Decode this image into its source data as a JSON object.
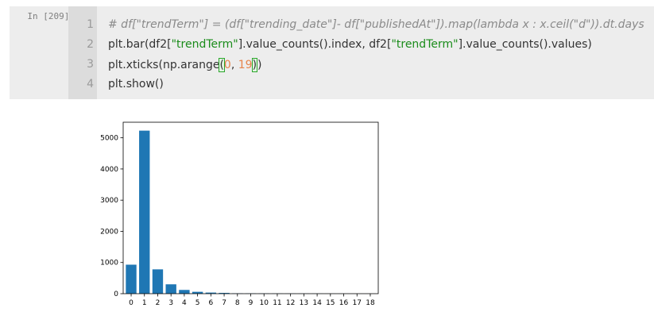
{
  "cell": {
    "prompt": "In [209]:",
    "line_numbers": [
      "1",
      "2",
      "3",
      "4"
    ],
    "lines": [
      [
        {
          "cls": "cm",
          "text": "# df[\"trendTerm\"] = (df[\"trending_date\"]- df[\"publishedAt\"]).map(lambda x : x.ceil(\"d\")).dt.days"
        }
      ],
      [
        {
          "cls": "",
          "text": "plt.bar(df2["
        },
        {
          "cls": "str",
          "text": "\"trendTerm\""
        },
        {
          "cls": "",
          "text": "].value_counts().index, df2["
        },
        {
          "cls": "str",
          "text": "\"trendTerm\""
        },
        {
          "cls": "",
          "text": "].value_counts().values)"
        }
      ],
      [
        {
          "cls": "",
          "text": "plt.xticks(np.arange"
        },
        {
          "cls": "bracket-hl",
          "text": "("
        },
        {
          "cls": "num",
          "text": "0"
        },
        {
          "cls": "",
          "text": ", "
        },
        {
          "cls": "num",
          "text": "19"
        },
        {
          "cls": "bracket-hl",
          "text": ")"
        },
        {
          "cls": "",
          "text": ")"
        }
      ],
      [
        {
          "cls": "",
          "text": "plt.show()"
        }
      ]
    ]
  },
  "chart_data": {
    "type": "bar",
    "categories": [
      "0",
      "1",
      "2",
      "3",
      "4",
      "5",
      "6",
      "7",
      "8",
      "9",
      "10",
      "11",
      "12",
      "13",
      "14",
      "15",
      "16",
      "17",
      "18"
    ],
    "values": [
      930,
      5230,
      780,
      300,
      120,
      60,
      35,
      25,
      10,
      8,
      6,
      5,
      4,
      3,
      3,
      2,
      2,
      1,
      1
    ],
    "ylim": [
      0,
      5500
    ],
    "yticks": [
      0,
      1000,
      2000,
      3000,
      4000,
      5000
    ],
    "xlim": [
      -0.6,
      18.6
    ],
    "bar_color": "#1f77b4",
    "title": "",
    "xlabel": "",
    "ylabel": ""
  }
}
